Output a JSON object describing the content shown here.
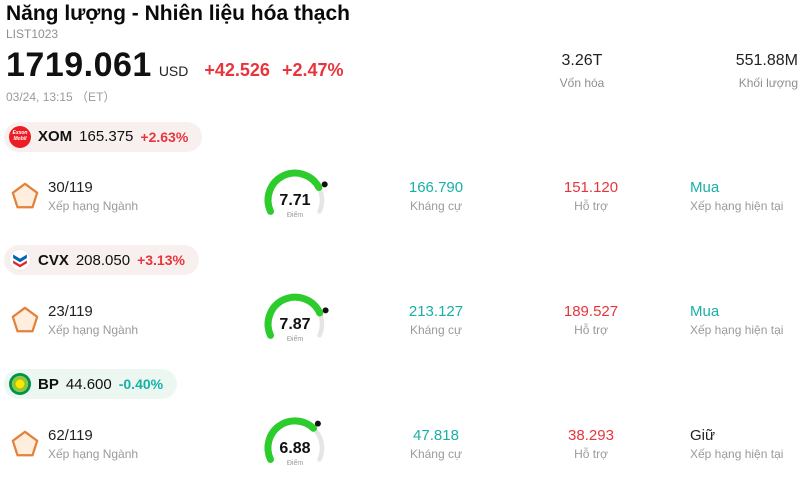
{
  "colors": {
    "up": "#e8353c",
    "down": "#18b0a6",
    "green": "#2bcc2b",
    "orange": "#e2823c",
    "gauge-rest": "#e5e5e5"
  },
  "icons": {
    "xom_logo": "red circle Exxon Mobil wordmark",
    "cvx_logo": "chevron blue-red stripes",
    "bp_logo": "green-yellow helios circle",
    "rank_icon": "orange pentagon outline",
    "gauge": "green score speedometer with dot marker"
  },
  "header": {
    "title": "Năng lượng - Nhiên liệu hóa thạch",
    "list_id": "LIST1023",
    "price": "1719.061",
    "currency": "USD",
    "change": "+42.526",
    "change_pct": "+2.47%",
    "change_dir": "up",
    "datetime": "03/24, 13:15 （ET）",
    "stats": [
      {
        "value": "3.26T",
        "label": "Vốn hóa"
      },
      {
        "value": "551.88M",
        "label": "Khối lượng"
      }
    ]
  },
  "labels": {
    "rank": "Xếp hạng Ngành",
    "score_unit": "Điểm",
    "resistance": "Kháng cự",
    "support": "Hỗ trợ",
    "rating": "Xếp hạng hiện tại"
  },
  "stocks": [
    {
      "ticker": "XOM",
      "logo_text": "Exxon Mobil",
      "price": "165.375",
      "change_pct": "+2.63%",
      "change_dir": "up",
      "rank": "30/119",
      "score": "7.71",
      "score_value": 7.71,
      "score_max": 10,
      "resistance": "166.790",
      "support": "151.120",
      "rating": "Mua",
      "rating_style": "teal"
    },
    {
      "ticker": "CVX",
      "price": "208.050",
      "change_pct": "+3.13%",
      "change_dir": "up",
      "rank": "23/119",
      "score": "7.87",
      "score_value": 7.87,
      "score_max": 10,
      "resistance": "213.127",
      "support": "189.527",
      "rating": "Mua",
      "rating_style": "teal"
    },
    {
      "ticker": "BP",
      "price": "44.600",
      "change_pct": "-0.40%",
      "change_dir": "down",
      "rank": "62/119",
      "score": "6.88",
      "score_value": 6.88,
      "score_max": 10,
      "resistance": "47.818",
      "support": "38.293",
      "rating": "Giữ",
      "rating_style": "dark"
    }
  ]
}
